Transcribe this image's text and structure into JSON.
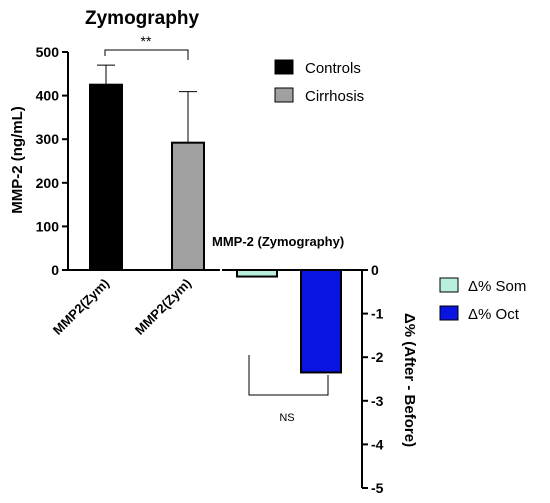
{
  "chart_data": [
    {
      "type": "bar",
      "title": "Zymography",
      "ylabel": "MMP-2 (ng/mL)",
      "ylim": [
        0,
        500
      ],
      "yticks": [
        "0",
        "100",
        "200",
        "300",
        "400",
        "500"
      ],
      "categories": [
        "MMP2(Zym)",
        "MMP2(Zym)"
      ],
      "series": [
        {
          "name": "Controls",
          "color": "#000000",
          "value": 425,
          "error": 45
        },
        {
          "name": "Cirrhosis",
          "color": "#a0a0a0",
          "value": 292,
          "error": 117
        }
      ],
      "significance": "**",
      "legend_position": "top-right"
    },
    {
      "type": "bar",
      "title": "MMP-2 (Zymography)",
      "ylabel": "Δ% (After - Before)",
      "ylim": [
        -5,
        0
      ],
      "yticks": [
        "0",
        "-1",
        "-2",
        "-3",
        "-4",
        "-5"
      ],
      "series": [
        {
          "name": "Δ% Som",
          "color": "#b8f0dc",
          "value": -0.15
        },
        {
          "name": "Δ% Oct",
          "color": "#0a14e0",
          "value": -2.35
        }
      ],
      "significance": "NS",
      "legend_position": "right"
    }
  ]
}
